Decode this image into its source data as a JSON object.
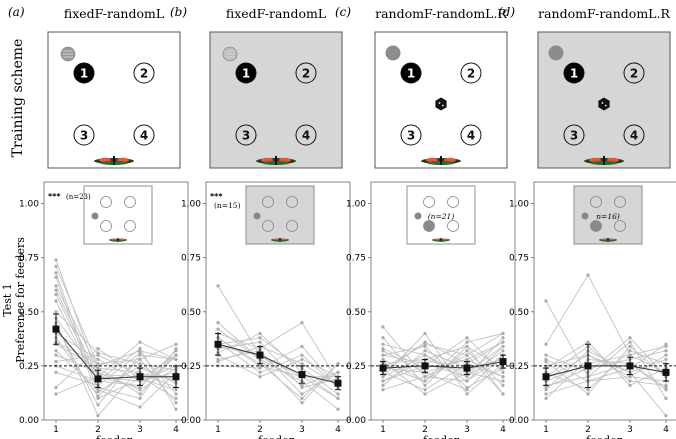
{
  "panels": [
    {
      "letter": "(a)",
      "title": "fixedF-randomL",
      "shaded": false,
      "scheme": "fixed",
      "sig": "***",
      "n_label": "(n=23)",
      "inset_shaded": false,
      "inset_sig": "fixed",
      "means": [
        0.42,
        0.19,
        0.2,
        0.2
      ],
      "errors": [
        0.07,
        0.04,
        0.04,
        0.05
      ],
      "lines": [
        [
          0.74,
          0.2,
          0.18,
          0.22
        ],
        [
          0.71,
          0.25,
          0.32,
          0.28
        ],
        [
          0.68,
          0.13,
          0.25,
          0.17
        ],
        [
          0.66,
          0.1,
          0.19,
          0.14
        ],
        [
          0.62,
          0.24,
          0.12,
          0.3
        ],
        [
          0.58,
          0.18,
          0.33,
          0.05
        ],
        [
          0.55,
          0.15,
          0.1,
          0.33
        ],
        [
          0.5,
          0.31,
          0.26,
          0.23
        ],
        [
          0.47,
          0.21,
          0.2,
          0.1
        ],
        [
          0.44,
          0.07,
          0.3,
          0.28
        ],
        [
          0.4,
          0.28,
          0.18,
          0.25
        ],
        [
          0.38,
          0.11,
          0.28,
          0.35
        ],
        [
          0.35,
          0.24,
          0.22,
          0.15
        ],
        [
          0.3,
          0.22,
          0.14,
          0.24
        ],
        [
          0.27,
          0.3,
          0.21,
          0.2
        ],
        [
          0.22,
          0.16,
          0.31,
          0.12
        ],
        [
          0.15,
          0.33,
          0.19,
          0.3
        ],
        [
          0.12,
          0.2,
          0.36,
          0.28
        ],
        [
          0.32,
          0.14,
          0.06,
          0.22
        ],
        [
          0.45,
          0.02,
          0.24,
          0.18
        ],
        [
          0.6,
          0.2,
          0.15,
          0.3
        ],
        [
          0.36,
          0.26,
          0.28,
          0.08
        ],
        [
          0.25,
          0.18,
          0.16,
          0.32
        ]
      ]
    },
    {
      "letter": "(b)",
      "title": "fixedF-randomL",
      "shaded": true,
      "scheme": "fixed",
      "sig": "***",
      "n_label": "(n=15)",
      "inset_shaded": true,
      "means": [
        0.35,
        0.3,
        0.21,
        0.17
      ],
      "errors": [
        0.05,
        0.04,
        0.04,
        0.03
      ],
      "lines": [
        [
          0.62,
          0.3,
          0.2,
          0.1
        ],
        [
          0.4,
          0.33,
          0.45,
          0.18
        ],
        [
          0.38,
          0.26,
          0.1,
          0.26
        ],
        [
          0.35,
          0.38,
          0.24,
          0.12
        ],
        [
          0.3,
          0.2,
          0.28,
          0.2
        ],
        [
          0.28,
          0.32,
          0.12,
          0.22
        ],
        [
          0.25,
          0.24,
          0.34,
          0.15
        ],
        [
          0.42,
          0.28,
          0.18,
          0.05
        ],
        [
          0.33,
          0.36,
          0.15,
          0.19
        ],
        [
          0.36,
          0.22,
          0.3,
          0.15
        ],
        [
          0.31,
          0.4,
          0.22,
          0.1
        ],
        [
          0.45,
          0.28,
          0.08,
          0.26
        ],
        [
          0.27,
          0.34,
          0.26,
          0.16
        ],
        [
          0.38,
          0.25,
          0.2,
          0.2
        ],
        [
          0.34,
          0.3,
          0.16,
          0.22
        ]
      ]
    },
    {
      "letter": "(c)",
      "title": "randomF-randomL.R",
      "shaded": false,
      "scheme": "random",
      "sig": "",
      "n_label": "(n=21)",
      "inset_shaded": false,
      "means": [
        0.24,
        0.25,
        0.24,
        0.27
      ],
      "errors": [
        0.03,
        0.03,
        0.03,
        0.03
      ],
      "lines": [
        [
          0.43,
          0.2,
          0.18,
          0.34
        ],
        [
          0.38,
          0.16,
          0.34,
          0.12
        ],
        [
          0.35,
          0.3,
          0.2,
          0.32
        ],
        [
          0.32,
          0.22,
          0.28,
          0.2
        ],
        [
          0.3,
          0.34,
          0.15,
          0.24
        ],
        [
          0.28,
          0.18,
          0.36,
          0.4
        ],
        [
          0.26,
          0.28,
          0.22,
          0.18
        ],
        [
          0.24,
          0.35,
          0.3,
          0.12
        ],
        [
          0.22,
          0.14,
          0.26,
          0.36
        ],
        [
          0.2,
          0.3,
          0.18,
          0.3
        ],
        [
          0.18,
          0.25,
          0.38,
          0.22
        ],
        [
          0.16,
          0.32,
          0.24,
          0.28
        ],
        [
          0.14,
          0.2,
          0.3,
          0.4
        ],
        [
          0.2,
          0.4,
          0.12,
          0.26
        ],
        [
          0.25,
          0.18,
          0.32,
          0.16
        ],
        [
          0.3,
          0.26,
          0.2,
          0.38
        ],
        [
          0.22,
          0.36,
          0.26,
          0.2
        ],
        [
          0.27,
          0.12,
          0.22,
          0.34
        ],
        [
          0.18,
          0.28,
          0.34,
          0.24
        ],
        [
          0.24,
          0.22,
          0.14,
          0.3
        ],
        [
          0.33,
          0.24,
          0.28,
          0.36
        ]
      ]
    },
    {
      "letter": "(d)",
      "title": "randomF-randomL.R",
      "shaded": true,
      "scheme": "random",
      "sig": "",
      "n_label": "n=16)",
      "inset_shaded": true,
      "means": [
        0.2,
        0.25,
        0.25,
        0.22
      ],
      "errors": [
        0.04,
        0.1,
        0.04,
        0.04
      ],
      "lines": [
        [
          0.55,
          0.2,
          0.26,
          0.14
        ],
        [
          0.35,
          0.67,
          0.3,
          0.34
        ],
        [
          0.3,
          0.22,
          0.38,
          0.2
        ],
        [
          0.28,
          0.18,
          0.24,
          0.35
        ],
        [
          0.25,
          0.3,
          0.2,
          0.18
        ],
        [
          0.22,
          0.14,
          0.32,
          0.26
        ],
        [
          0.2,
          0.34,
          0.18,
          0.16
        ],
        [
          0.18,
          0.26,
          0.3,
          0.22
        ],
        [
          0.16,
          0.2,
          0.36,
          0.1
        ],
        [
          0.14,
          0.32,
          0.22,
          0.28
        ],
        [
          0.12,
          0.18,
          0.2,
          0.3
        ],
        [
          0.1,
          0.28,
          0.26,
          0.15
        ],
        [
          0.24,
          0.36,
          0.16,
          0.24
        ],
        [
          0.27,
          0.12,
          0.34,
          0.2
        ],
        [
          0.15,
          0.24,
          0.28,
          0.32
        ],
        [
          0.19,
          0.3,
          0.22,
          0.02
        ]
      ]
    }
  ],
  "row_labels": {
    "scheme": "Training scheme",
    "test_line1": "Test 1",
    "test_line2": "Preference for feeders"
  },
  "feeder_numbers": [
    "1",
    "2",
    "3",
    "4"
  ],
  "axis": {
    "xlabel": "feeder",
    "yticks": [
      "0.00",
      "0.25",
      "0.50",
      "0.75",
      "1.00"
    ],
    "xticks": [
      "1",
      "2",
      "3",
      "4"
    ],
    "ylim": [
      0,
      1.1
    ],
    "chance": 0.25
  },
  "colors": {
    "shade": "#d6d6d6",
    "line": "#c2c2c2",
    "mean": "#111111",
    "feeder_fill": "#000000",
    "cue_grey": "#8c8c8c"
  }
}
